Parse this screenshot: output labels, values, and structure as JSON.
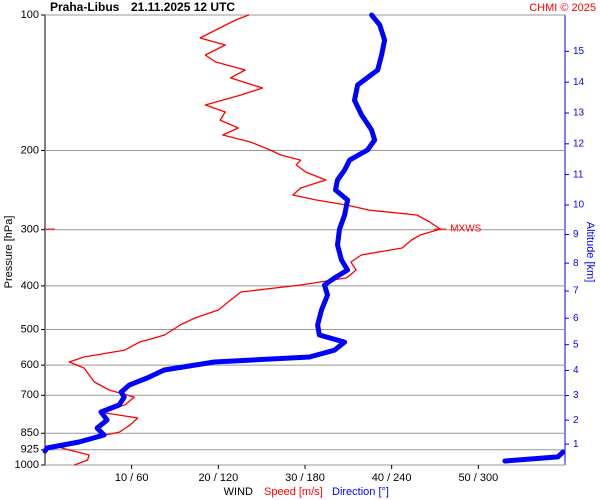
{
  "chart_data": {
    "type": "wind-profile",
    "station": "Praha-Libus",
    "time": "21.11.2025 12 UTC",
    "credit": "CHMI © 2025",
    "ylabel": "Pressure [hPa]",
    "y2label": "Altitude [km]",
    "xlabel": "WIND",
    "yscale": "log",
    "ylim": [
      1000,
      100
    ],
    "yticks": [
      100,
      200,
      300,
      400,
      500,
      600,
      700,
      850,
      925,
      1000
    ],
    "y2ticks": [
      1,
      2,
      3,
      4,
      5,
      6,
      7,
      8,
      9,
      10,
      11,
      12,
      13,
      14,
      15
    ],
    "xlim": [
      0,
      60
    ],
    "x2lim": [
      0,
      360
    ],
    "xticks": [
      {
        "value": 10,
        "label": "10 / 60"
      },
      {
        "value": 20,
        "label": "20 / 120"
      },
      {
        "value": 30,
        "label": "30 / 180"
      },
      {
        "value": 40,
        "label": "40 / 240"
      },
      {
        "value": 50,
        "label": "50 / 300"
      }
    ],
    "grid": true,
    "annotations": [
      {
        "text": "MXWS",
        "pressure": 299,
        "speed": 45.6
      }
    ],
    "series": [
      {
        "name": "Speed [m/s]",
        "color": "#ff0000",
        "axis": "x",
        "pressure": [
          100,
          102.6,
          108,
          112.5,
          116.6,
          122.7,
          127.2,
          132.5,
          138,
          145.3,
          150.6,
          158.5,
          164.3,
          171.2,
          178.3,
          184.8,
          191.5,
          199.5,
          204.7,
          210.1,
          215.4,
          223.4,
          232.6,
          242.3,
          251.2,
          257.7,
          264.4,
          271.3,
          278.3,
          288.4,
          299,
          308.3,
          316.2,
          329.5,
          341.5,
          353.9,
          368.7,
          384,
          398.1,
          412.6,
          430,
          452.5,
          471.4,
          488.6,
          514.1,
          533.1,
          555.4,
          575.4,
          590.3,
          608.9,
          631,
          654,
          681.3,
          706.4,
          735.6,
          762.4,
          786.1,
          815.3,
          845.1,
          880.1,
          916.7,
          950.2,
          974.7,
          1000
        ],
        "values": [
          23.5,
          22.0,
          19.7,
          17.9,
          20.8,
          18.5,
          19.7,
          23.1,
          21.4,
          25.1,
          22.6,
          18.5,
          20.8,
          20.2,
          22.3,
          20.5,
          23.7,
          26.0,
          27.2,
          29.5,
          29.0,
          30.1,
          32.4,
          29.5,
          28.6,
          31.3,
          34.8,
          37.4,
          42.9,
          44.4,
          45.6,
          43.3,
          42.3,
          41.2,
          36.5,
          35.3,
          35.9,
          34.8,
          29.5,
          22.6,
          21.4,
          20.0,
          17.3,
          15.6,
          13.8,
          10.9,
          9.2,
          4.5,
          2.8,
          4.5,
          5.1,
          5.7,
          7.4,
          10.3,
          9.2,
          6.3,
          10.7,
          9.8,
          8.6,
          4.0,
          1.9,
          5.1,
          4.9,
          3.4
        ]
      },
      {
        "name": "Direction [°]",
        "color": "#0000ff",
        "axis": "x2",
        "pressure": [
          100,
          105.2,
          113.7,
          122.7,
          132.5,
          143.1,
          154.7,
          166.8,
          180.1,
          189.6,
          199.5,
          210.1,
          221.1,
          232.6,
          244.8,
          257.7,
          278.3,
          299,
          324.5,
          350.4,
          368.7,
          384,
          398.1,
          419,
          452.5,
          488.6,
          514.1,
          533.1,
          555.4,
          575.4,
          590.3,
          615.1,
          640.6,
          664.3,
          688.5,
          706.4,
          735.6,
          762.4,
          794.3,
          827.9,
          857.7,
          889.1,
          916.7,
          930.8,
          null,
          935.6,
          959.4,
          979.8
        ],
        "values": [
          226.1,
          231.7,
          235.1,
          233.0,
          230.3,
          216.4,
          214.3,
          219.2,
          226.1,
          228.2,
          223.3,
          210.9,
          207.4,
          202.5,
          201.1,
          209.5,
          207.4,
          203.9,
          202.5,
          205.3,
          209.5,
          200.5,
          193.5,
          195.6,
          191.4,
          188.7,
          190.0,
          207.4,
          200.5,
          183.1,
          117.2,
          82.5,
          70.7,
          58.3,
          52.7,
          54.8,
          51.3,
          38.8,
          43.0,
          36.1,
          40.9,
          23.6,
          1.4,
          0,
          null,
          358.6,
          355.1,
          318.4
        ]
      }
    ]
  }
}
